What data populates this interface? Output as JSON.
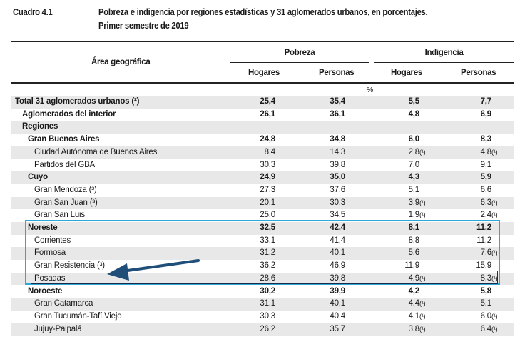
{
  "header": {
    "label": "Cuadro 4.1",
    "title": "Pobreza e indigencia por regiones estadísticas y 31 aglomerados urbanos, en porcentajes.",
    "subtitle": "Primer semestre de 2019"
  },
  "table": {
    "col_area": "Área geográfica",
    "group_pobreza": "Pobreza",
    "group_indigencia": "Indigencia",
    "sub_hogares": "Hogares",
    "sub_personas": "Personas",
    "unit": "%",
    "rows": [
      {
        "label": "Total 31 aglomerados urbanos (²)",
        "level": 0,
        "bold": true,
        "values": [
          "25,4",
          "35,4",
          "5,5",
          "7,7"
        ],
        "notes": [
          "",
          "",
          "",
          ""
        ]
      },
      {
        "label": "Aglomerados del interior",
        "level": 1,
        "bold": true,
        "values": [
          "26,1",
          "36,1",
          "4,8",
          "6,9"
        ],
        "notes": [
          "",
          "",
          "",
          ""
        ]
      },
      {
        "label": "Regiones",
        "level": 1,
        "bold": true,
        "values": [
          "",
          "",
          "",
          ""
        ],
        "notes": [
          "",
          "",
          "",
          ""
        ]
      },
      {
        "label": "Gran Buenos Aires",
        "level": 2,
        "bold": true,
        "values": [
          "24,8",
          "34,8",
          "6,0",
          "8,3"
        ],
        "notes": [
          "",
          "",
          "",
          ""
        ]
      },
      {
        "label": "Ciudad Autónoma de Buenos Aires",
        "level": 3,
        "bold": false,
        "values": [
          "8,4",
          "14,3",
          "2,8",
          "4,8"
        ],
        "notes": [
          "",
          "",
          "(¹)",
          "(¹)"
        ]
      },
      {
        "label": "Partidos del GBA",
        "level": 3,
        "bold": false,
        "values": [
          "30,3",
          "39,8",
          "7,0",
          "9,1"
        ],
        "notes": [
          "",
          "",
          "",
          ""
        ]
      },
      {
        "label": "Cuyo",
        "level": 2,
        "bold": true,
        "values": [
          "24,9",
          "35,0",
          "4,3",
          "5,9"
        ],
        "notes": [
          "",
          "",
          "",
          ""
        ]
      },
      {
        "label": "Gran Mendoza (³)",
        "level": 3,
        "bold": false,
        "values": [
          "27,3",
          "37,6",
          "5,1",
          "6,6"
        ],
        "notes": [
          "",
          "",
          "",
          ""
        ]
      },
      {
        "label": "Gran San Juan (³)",
        "level": 3,
        "bold": false,
        "values": [
          "20,1",
          "30,3",
          "3,9",
          "6,3"
        ],
        "notes": [
          "",
          "",
          "(¹)",
          "(¹)"
        ]
      },
      {
        "label": "Gran San Luis",
        "level": 3,
        "bold": false,
        "values": [
          "25,0",
          "34,5",
          "1,9",
          "2,4"
        ],
        "notes": [
          "",
          "",
          "(¹)",
          "(¹)"
        ]
      },
      {
        "label": "Noreste",
        "level": 2,
        "bold": true,
        "values": [
          "32,5",
          "42,4",
          "8,1",
          "11,2"
        ],
        "notes": [
          "",
          "",
          "",
          ""
        ]
      },
      {
        "label": "Corrientes",
        "level": 3,
        "bold": false,
        "values": [
          "33,1",
          "41,4",
          "8,8",
          "11,2"
        ],
        "notes": [
          "",
          "",
          "",
          ""
        ]
      },
      {
        "label": "Formosa",
        "level": 3,
        "bold": false,
        "values": [
          "31,2",
          "40,1",
          "5,6",
          "7,6"
        ],
        "notes": [
          "",
          "",
          "",
          "(¹)"
        ]
      },
      {
        "label": "Gran Resistencia (³)",
        "level": 3,
        "bold": false,
        "values": [
          "36,2",
          "46,9",
          "11,9",
          "15,9"
        ],
        "notes": [
          "",
          "",
          "",
          ""
        ]
      },
      {
        "label": "Posadas",
        "level": 3,
        "bold": false,
        "values": [
          "28,6",
          "39,8",
          "4,9",
          "8,3"
        ],
        "notes": [
          "",
          "",
          "(¹)",
          "(¹)"
        ]
      },
      {
        "label": "Noroeste",
        "level": 2,
        "bold": true,
        "values": [
          "30,2",
          "39,9",
          "4,2",
          "5,8"
        ],
        "notes": [
          "",
          "",
          "",
          ""
        ]
      },
      {
        "label": "Gran Catamarca",
        "level": 3,
        "bold": false,
        "values": [
          "31,1",
          "40,1",
          "4,4",
          "5,1"
        ],
        "notes": [
          "",
          "",
          "(¹)",
          ""
        ]
      },
      {
        "label": "Gran Tucumán-Tafí Viejo",
        "level": 3,
        "bold": false,
        "values": [
          "30,3",
          "40,4",
          "4,1",
          "6,0"
        ],
        "notes": [
          "",
          "",
          "(¹)",
          "(¹)"
        ]
      },
      {
        "label": "Jujuy-Palpalá",
        "level": 3,
        "bold": false,
        "values": [
          "26,2",
          "35,7",
          "3,8",
          "6,4"
        ],
        "notes": [
          "",
          "",
          "(¹)",
          "(¹)"
        ]
      }
    ]
  },
  "annotations": {
    "highlight_color": "#2aa8d8",
    "selected_row_border": "#1c2a4e",
    "arrow_color": "#1f4e79",
    "highlighted_region": "Noreste",
    "selected_row": "Posadas",
    "arrow_icon": "arrow-left-icon"
  }
}
